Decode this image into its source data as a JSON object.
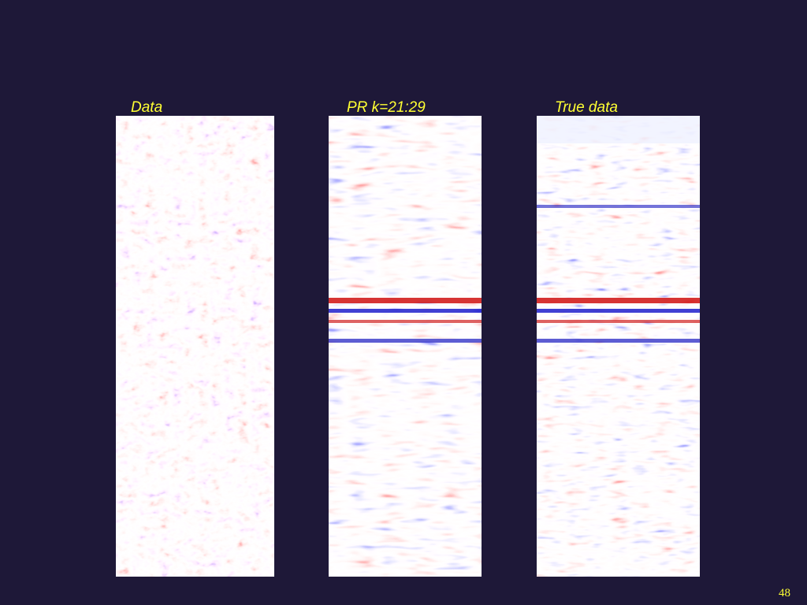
{
  "panels": [
    {
      "label": "Data"
    },
    {
      "label": "PR k=21:29"
    },
    {
      "label": "True data"
    }
  ],
  "page_number": "48"
}
